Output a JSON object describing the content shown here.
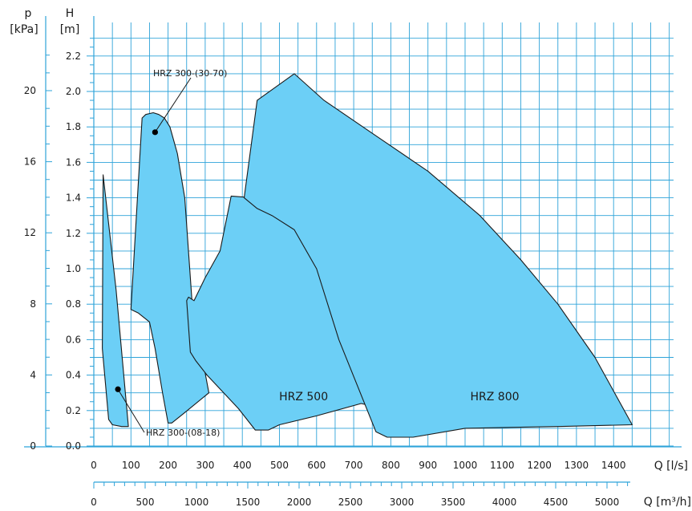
{
  "chart_data": {
    "type": "area",
    "left_axes": {
      "p": {
        "symbol": "p",
        "unit": "[kPa]",
        "ticks": [
          "0",
          "4",
          "8",
          "12",
          "16",
          "20"
        ],
        "tick_values": [
          0,
          4,
          8,
          12,
          16,
          20
        ]
      },
      "h": {
        "symbol": "H",
        "unit": "[m]",
        "ticks": [
          "0.0",
          "0.2",
          "0.4",
          "0.6",
          "0.8",
          "1.0",
          "1.2",
          "1.4",
          "1.6",
          "1.8",
          "2.0",
          "2.2"
        ],
        "tick_values": [
          0,
          0.2,
          0.4,
          0.6,
          0.8,
          1.0,
          1.2,
          1.4,
          1.6,
          1.8,
          2.0,
          2.2
        ],
        "ylim": [
          0,
          2.3
        ]
      }
    },
    "bottom_axes": {
      "q_ls": {
        "label": "Q [l/s]",
        "ticks": [
          "0",
          "100",
          "200",
          "300",
          "400",
          "500",
          "600",
          "700",
          "800",
          "900",
          "1000",
          "1100",
          "1200",
          "1300",
          "1400"
        ],
        "tick_values": [
          0,
          100,
          200,
          300,
          400,
          500,
          600,
          700,
          800,
          900,
          1000,
          1100,
          1200,
          1300,
          1400
        ],
        "xlim": [
          0,
          1600
        ]
      },
      "q_m3h": {
        "label": "Q [m³/h]",
        "ticks": [
          "0",
          "500",
          "1000",
          "1500",
          "2000",
          "2500",
          "3000",
          "3500",
          "4000",
          "4500",
          "5000"
        ],
        "tick_values": [
          0,
          500,
          1000,
          1500,
          2000,
          2500,
          3000,
          3500,
          4000,
          4500,
          5000
        ]
      }
    },
    "grid": true,
    "series": [
      {
        "name": "HRZ 300-(08-18)",
        "color": "#6ccff6",
        "q": [
          25,
          23,
          40,
          50,
          75,
          93,
          60,
          25
        ],
        "h": [
          1.53,
          0.55,
          0.15,
          0.12,
          0.11,
          0.11,
          0.88,
          1.53
        ]
      },
      {
        "name": "HRZ 300-(30-70)",
        "color": "#6ccff6",
        "q": [
          130,
          140,
          160,
          175,
          190,
          205,
          225,
          245,
          265,
          310,
          240,
          210,
          200,
          185,
          165,
          150,
          120,
          100,
          130
        ],
        "h": [
          1.85,
          1.87,
          1.88,
          1.87,
          1.85,
          1.8,
          1.65,
          1.4,
          0.8,
          0.3,
          0.18,
          0.13,
          0.13,
          0.3,
          0.55,
          0.7,
          0.75,
          0.77,
          1.85
        ]
      },
      {
        "name": "HRZ 500",
        "color": "#6ccff6",
        "q": [
          270,
          300,
          340,
          370,
          430,
          490,
          540,
          600,
          660,
          710,
          760,
          720,
          600,
          500,
          470,
          435,
          390,
          350,
          305,
          275,
          260,
          250,
          255,
          270
        ],
        "h": [
          0.82,
          0.95,
          1.1,
          1.41,
          1.4,
          1.35,
          1.25,
          1.05,
          0.8,
          0.55,
          0.22,
          0.24,
          0.17,
          0.12,
          0.09,
          0.09,
          0.21,
          0.3,
          0.4,
          0.48,
          0.53,
          0.82,
          0.84,
          0.82
        ]
      },
      {
        "name": "HRZ 800",
        "color": "#6ccff6",
        "q": [
          405,
          440,
          540,
          620,
          760,
          900,
          1040,
          1150,
          1250,
          1350,
          1450,
          1250,
          1000,
          860,
          790,
          760,
          660,
          600,
          540,
          480,
          440,
          405
        ],
        "h": [
          1.4,
          1.95,
          2.1,
          1.95,
          1.75,
          1.55,
          1.3,
          1.05,
          0.8,
          0.5,
          0.12,
          0.11,
          0.1,
          0.05,
          0.05,
          0.08,
          0.6,
          1.0,
          1.22,
          1.3,
          1.34,
          1.4
        ]
      }
    ],
    "region_labels": [
      {
        "text": "HRZ 500",
        "q": 565,
        "h": 0.28
      },
      {
        "text": "HRZ 800",
        "q": 1080,
        "h": 0.28
      }
    ],
    "annotations": [
      {
        "text": "HRZ 300-(30-70)",
        "point_q": 165,
        "point_h": 1.77
      },
      {
        "text": "HRZ 300-(08-18)",
        "point_q": 65,
        "point_h": 0.32
      }
    ]
  }
}
